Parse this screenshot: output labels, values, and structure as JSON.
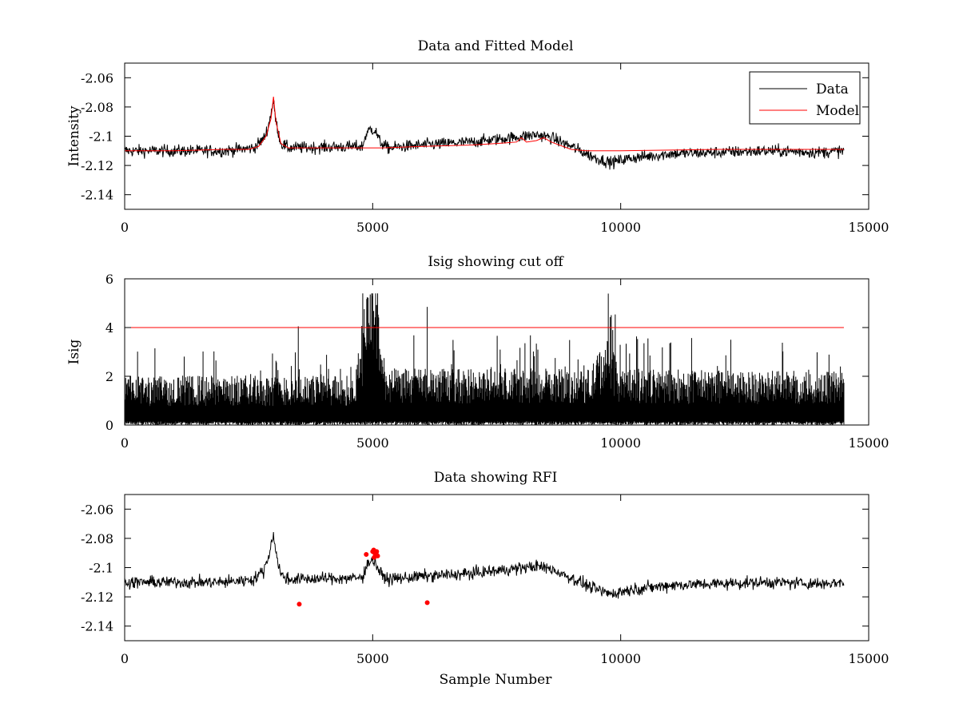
{
  "chart_data": [
    {
      "id": "top",
      "type": "line",
      "title": "Data and Fitted Model",
      "xlabel": "",
      "ylabel": "Intensity",
      "xlim": [
        0,
        15000
      ],
      "ylim": [
        -2.15,
        -2.05
      ],
      "xticks": [
        0,
        5000,
        10000,
        15000
      ],
      "yticks": [
        -2.14,
        -2.12,
        -2.1,
        -2.08,
        -2.06
      ],
      "xtick_labels": [
        "0",
        "5000",
        "10000",
        "15000"
      ],
      "ytick_labels": [
        "-2.14",
        "-2.12",
        "-2.1",
        "-2.08",
        "-2.06"
      ],
      "legend": {
        "placement": "top-right",
        "entries": [
          {
            "label": "Data",
            "color": "#000000"
          },
          {
            "label": "Model",
            "color": "#ff0000"
          }
        ]
      },
      "series": [
        {
          "name": "Data",
          "color": "#000000",
          "kind": "noisy",
          "noise": 0.0032,
          "n": 1450,
          "baseline_x": [
            0,
            2000,
            2600,
            2800,
            2900,
            2960,
            3000,
            3050,
            3150,
            3300,
            4800,
            4850,
            4950,
            5050,
            5150,
            5300,
            6000,
            7000,
            7800,
            8300,
            8600,
            9000,
            9500,
            9800,
            10200,
            11000,
            12000,
            13000,
            14000,
            14500
          ],
          "baseline_y": [
            -2.11,
            -2.11,
            -2.108,
            -2.102,
            -2.093,
            -2.082,
            -2.077,
            -2.09,
            -2.105,
            -2.108,
            -2.107,
            -2.1,
            -2.095,
            -2.096,
            -2.104,
            -2.108,
            -2.106,
            -2.104,
            -2.101,
            -2.099,
            -2.101,
            -2.107,
            -2.115,
            -2.118,
            -2.115,
            -2.112,
            -2.111,
            -2.11,
            -2.111,
            -2.11
          ]
        },
        {
          "name": "Model",
          "color": "#ff0000",
          "kind": "line",
          "x": [
            0,
            1000,
            2000,
            2500,
            2700,
            2850,
            2950,
            3000,
            3050,
            3150,
            3300,
            4000,
            4800,
            5200,
            6000,
            7000,
            7500,
            7900,
            8000,
            8100,
            8300,
            8450,
            8600,
            9000,
            9300,
            10000,
            12000,
            14500
          ],
          "y": [
            -2.11,
            -2.11,
            -2.109,
            -2.109,
            -2.107,
            -2.1,
            -2.088,
            -2.073,
            -2.09,
            -2.105,
            -2.108,
            -2.108,
            -2.108,
            -2.108,
            -2.107,
            -2.106,
            -2.105,
            -2.104,
            -2.101,
            -2.104,
            -2.103,
            -2.101,
            -2.104,
            -2.109,
            -2.11,
            -2.11,
            -2.109,
            -2.109
          ]
        }
      ]
    },
    {
      "id": "mid",
      "type": "line",
      "title": "Isig showing cut off",
      "xlabel": "",
      "ylabel": "Isig",
      "xlim": [
        0,
        15000
      ],
      "ylim": [
        0,
        6
      ],
      "xticks": [
        0,
        5000,
        10000,
        15000
      ],
      "yticks": [
        0,
        2,
        4,
        6
      ],
      "xtick_labels": [
        "0",
        "5000",
        "10000",
        "15000"
      ],
      "ytick_labels": [
        "0",
        "2",
        "4",
        "6"
      ],
      "series": [
        {
          "name": "Isig",
          "color": "#000000",
          "kind": "spiky",
          "n": 1450,
          "envelope_x": [
            0,
            4600,
            4750,
            4850,
            4950,
            5050,
            5150,
            5300,
            9400,
            9700,
            10000,
            14500
          ],
          "envelope_y": [
            1.4,
            1.4,
            2.0,
            3.6,
            4.6,
            4.8,
            2.5,
            1.6,
            1.6,
            2.6,
            1.6,
            1.5
          ],
          "spikes": [
            {
              "x": 3500,
              "y": 4.05
            },
            {
              "x": 6100,
              "y": 4.85
            },
            {
              "x": 5000,
              "y": 5.3
            }
          ]
        },
        {
          "name": "Cut off",
          "color": "#ff0000",
          "kind": "line",
          "x": [
            0,
            14500
          ],
          "y": [
            4,
            4
          ]
        }
      ]
    },
    {
      "id": "bot",
      "type": "line",
      "title": "Data showing RFI",
      "xlabel": "Sample Number",
      "ylabel": "",
      "xlim": [
        0,
        15000
      ],
      "ylim": [
        -2.15,
        -2.05
      ],
      "xticks": [
        0,
        5000,
        10000,
        15000
      ],
      "yticks": [
        -2.14,
        -2.12,
        -2.1,
        -2.08,
        -2.06
      ],
      "xtick_labels": [
        "0",
        "5000",
        "10000",
        "15000"
      ],
      "ytick_labels": [
        "-2.14",
        "-2.12",
        "-2.1",
        "-2.08",
        "-2.06"
      ],
      "series": [
        {
          "name": "Data",
          "color": "#000000",
          "kind": "noisy",
          "noise": 0.0032,
          "n": 1450,
          "baseline_x": [
            0,
            2000,
            2600,
            2800,
            2900,
            2960,
            3000,
            3050,
            3150,
            3300,
            4800,
            4850,
            4950,
            5050,
            5150,
            5300,
            6000,
            7000,
            7800,
            8300,
            8600,
            9000,
            9500,
            9800,
            10200,
            11000,
            12000,
            13000,
            14000,
            14500
          ],
          "baseline_y": [
            -2.11,
            -2.11,
            -2.108,
            -2.102,
            -2.093,
            -2.082,
            -2.077,
            -2.09,
            -2.105,
            -2.108,
            -2.107,
            -2.1,
            -2.095,
            -2.096,
            -2.104,
            -2.108,
            -2.106,
            -2.104,
            -2.101,
            -2.099,
            -2.101,
            -2.107,
            -2.115,
            -2.118,
            -2.115,
            -2.112,
            -2.111,
            -2.11,
            -2.111,
            -2.11
          ]
        },
        {
          "name": "RFI",
          "color": "#ff0000",
          "kind": "markers",
          "x": [
            3520,
            4870,
            5000,
            5020,
            5040,
            5060,
            5080,
            5100,
            5030,
            5070,
            6100
          ],
          "y": [
            -2.125,
            -2.091,
            -2.089,
            -2.088,
            -2.09,
            -2.091,
            -2.089,
            -2.092,
            -2.093,
            -2.09,
            -2.124
          ]
        }
      ]
    }
  ]
}
